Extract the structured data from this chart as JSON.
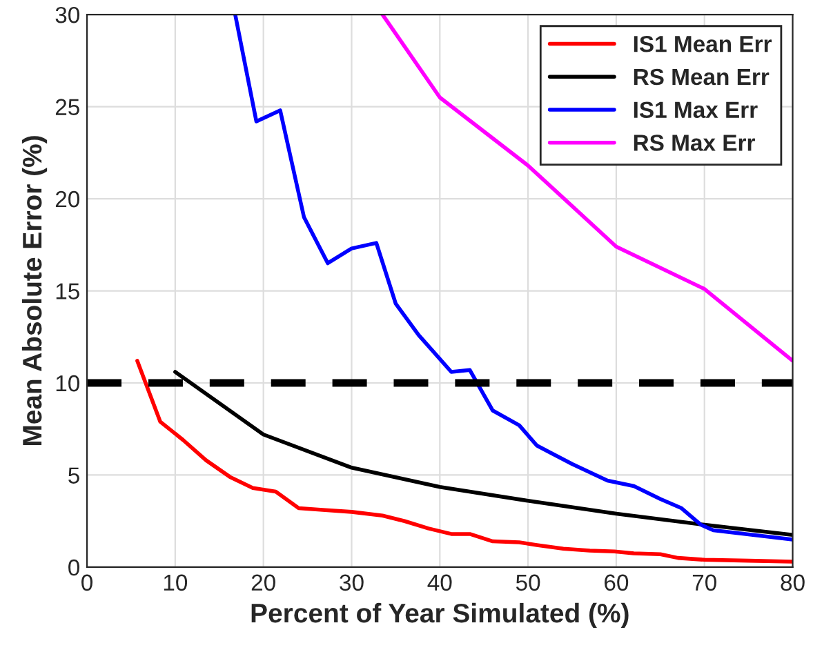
{
  "chart_data": {
    "type": "line",
    "xlabel": "Percent of Year Simulated (%)",
    "ylabel": "Mean Absolute Error (%)",
    "xlim": [
      0,
      80
    ],
    "ylim": [
      0,
      30
    ],
    "xticks": [
      0,
      10,
      20,
      30,
      40,
      50,
      60,
      70,
      80
    ],
    "yticks": [
      0,
      5,
      10,
      15,
      20,
      25,
      30
    ],
    "grid": true,
    "legend": "top right",
    "line_style": "solid",
    "series": [
      {
        "name": "IS1 Mean Err",
        "color": "#ff0000",
        "x": [
          5.7,
          8.3,
          10.9,
          13.5,
          16.2,
          18.8,
          21.4,
          24,
          27,
          30,
          33.5,
          36,
          38.7,
          41.3,
          43.4,
          46,
          49,
          51,
          54,
          57,
          59.8,
          62,
          65,
          67,
          70,
          75,
          80
        ],
        "values": [
          11.2,
          7.9,
          6.9,
          5.8,
          4.9,
          4.3,
          4.1,
          3.2,
          3.1,
          3.0,
          2.8,
          2.5,
          2.1,
          1.8,
          1.8,
          1.4,
          1.35,
          1.2,
          1.0,
          0.9,
          0.85,
          0.75,
          0.7,
          0.5,
          0.4,
          0.35,
          0.3
        ]
      },
      {
        "name": "RS Mean Err",
        "color": "#000000",
        "x": [
          10,
          20,
          30,
          40,
          50,
          60,
          70,
          80
        ],
        "values": [
          10.6,
          7.2,
          5.4,
          4.35,
          3.6,
          2.9,
          2.3,
          1.75
        ]
      },
      {
        "name": "IS1 Max Err",
        "color": "#0000ff",
        "x": [
          16.8,
          19.2,
          21.9,
          24.6,
          27.3,
          30,
          32.8,
          35,
          37.6,
          41.3,
          43.4,
          46,
          49,
          51,
          52.6,
          55,
          59,
          62,
          65,
          67.4,
          69.6,
          71,
          80
        ],
        "values": [
          30,
          24.2,
          24.8,
          19,
          16.5,
          17.3,
          17.6,
          14.3,
          12.6,
          10.6,
          10.7,
          8.5,
          7.7,
          6.6,
          6.2,
          5.6,
          4.7,
          4.4,
          3.7,
          3.2,
          2.3,
          2.0,
          1.5
        ]
      },
      {
        "name": "RS Max Err",
        "color": "#ff00ff",
        "x": [
          33.5,
          40,
          50,
          60,
          70,
          80
        ],
        "values": [
          30,
          25.5,
          21.8,
          17.4,
          15.1,
          11.2
        ]
      }
    ],
    "ref_lines": [
      {
        "axis": "y",
        "value": 10,
        "color": "#000000",
        "line_style": "dashed"
      }
    ]
  }
}
